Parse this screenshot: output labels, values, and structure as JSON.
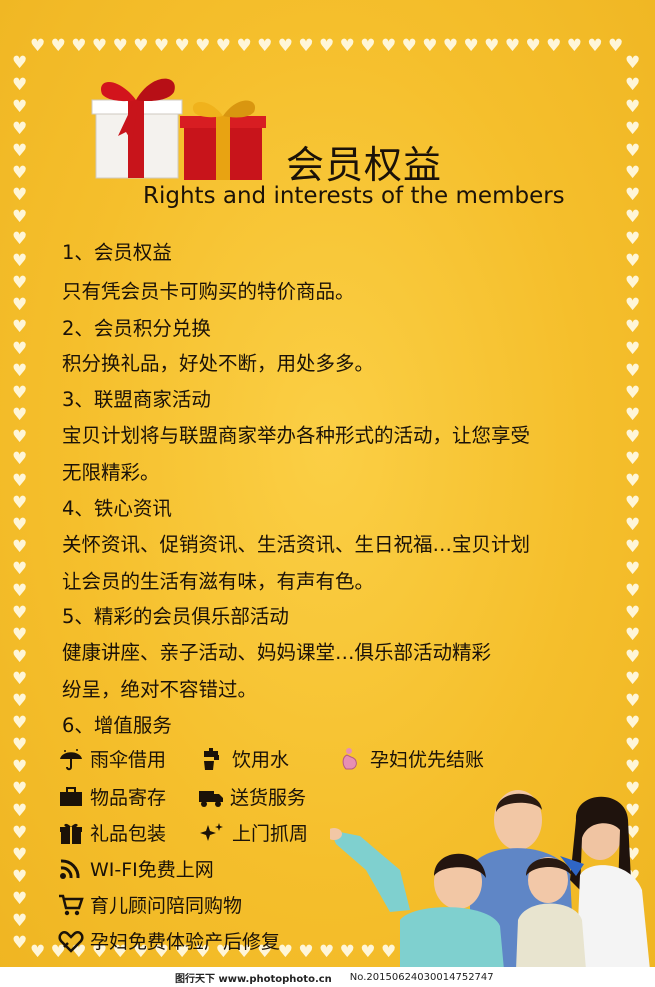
{
  "header": {
    "title_cn": "会员权益",
    "title_en": "Rights and interests of the members"
  },
  "sections": [
    {
      "heading": "1、会员权益",
      "lines": [
        "只有凭会员卡可购买的特价商品。"
      ]
    },
    {
      "heading": "2、会员积分兑换",
      "lines": [
        "积分换礼品，好处不断，用处多多。"
      ]
    },
    {
      "heading": "3、联盟商家活动",
      "lines": [
        "宝贝计划将与联盟商家举办各种形式的活动，让您享受",
        "无限精彩。"
      ]
    },
    {
      "heading": "4、铁心资讯",
      "lines": [
        "关怀资讯、促销资讯、生活资讯、生日祝福…宝贝计划",
        "让会员的生活有滋有味，有声有色。"
      ]
    },
    {
      "heading": "5、精彩的会员俱乐部活动",
      "lines": [
        "健康讲座、亲子活动、妈妈课堂…俱乐部活动精彩",
        "纷呈，绝对不容错过。"
      ]
    },
    {
      "heading": "6、增值服务",
      "lines": []
    }
  ],
  "services": [
    {
      "label": "雨伞借用",
      "icon": "umbrella-icon"
    },
    {
      "label": "饮用水",
      "icon": "water-tap-icon"
    },
    {
      "label": "孕妇优先结账",
      "icon": "pregnant-woman-icon"
    },
    {
      "label": "物品寄存",
      "icon": "briefcase-icon"
    },
    {
      "label": "送货服务",
      "icon": "delivery-truck-icon"
    },
    {
      "label": "礼品包装",
      "icon": "gift-box-icon"
    },
    {
      "label": "上门抓周",
      "icon": "sparkle-icon"
    },
    {
      "label": "WI-FI免费上网",
      "icon": "wifi-icon"
    },
    {
      "label": "育儿顾问陪同购物",
      "icon": "shopping-cart-icon"
    },
    {
      "label": "孕妇免费体验产后修复",
      "icon": "heart-care-icon"
    }
  ],
  "watermark": {
    "left": "图行天下 www.photophoto.cn",
    "right": "No.20150624030014752747"
  },
  "colors": {
    "background": "#f6c12e",
    "text": "#1b1208",
    "gift_red": "#c8141b",
    "ribbon_gold": "#e8a312"
  }
}
